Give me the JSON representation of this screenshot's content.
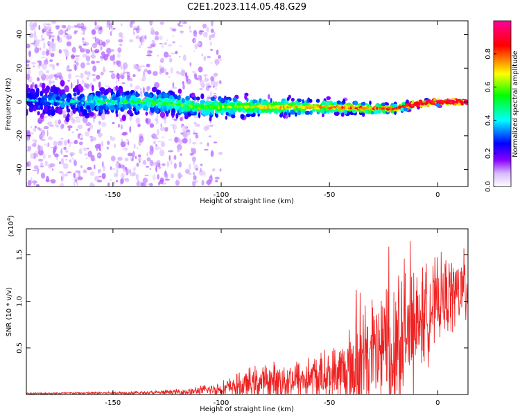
{
  "title": "C2E1.2023.114.05.48.G29",
  "chart_data": [
    {
      "type": "heatmap",
      "xlabel": "Height of straight line (km)",
      "ylabel": "Frequency (Hz)",
      "xlim": [
        -190,
        14
      ],
      "ylim": [
        -50,
        48
      ],
      "xticks": [
        -150,
        -100,
        -50,
        0
      ],
      "yticks": [
        -40,
        -20,
        0,
        20,
        40
      ],
      "colorbar": {
        "label": "Normalized spectral amplitude",
        "range": [
          0,
          1
        ],
        "ticks": [
          "0.0",
          "0.2",
          "0.4",
          "0.6",
          "0.8"
        ],
        "colormap": [
          "#ffffff",
          "#8800ff",
          "#0000ff",
          "#00ffff",
          "#00ff00",
          "#ffff00",
          "#ff0000",
          "#ff00aa"
        ]
      },
      "ridge": [
        {
          "x": -190,
          "y": 1
        },
        {
          "x": -170,
          "y": 0
        },
        {
          "x": -150,
          "y": 0
        },
        {
          "x": -130,
          "y": 0
        },
        {
          "x": -110,
          "y": -3
        },
        {
          "x": -90,
          "y": -3
        },
        {
          "x": -70,
          "y": -3
        },
        {
          "x": -50,
          "y": -3
        },
        {
          "x": -30,
          "y": -4
        },
        {
          "x": -20,
          "y": -4
        },
        {
          "x": -10,
          "y": -1
        },
        {
          "x": 0,
          "y": 0
        },
        {
          "x": 14,
          "y": 0
        }
      ]
    },
    {
      "type": "line",
      "xlabel": "Height of straight line (km)",
      "ylabel": "SNR (10 * v/v)",
      "yscale_label": "(x10",
      "yscale_exp": "4",
      "yscale_close": ")",
      "xlim": [
        -190,
        14
      ],
      "ylim": [
        0,
        1.78
      ],
      "xticks": [
        -150,
        -100,
        -50,
        0
      ],
      "yticks": [
        0.5,
        1.0,
        1.5
      ],
      "color": "#ee2222",
      "envelope": [
        {
          "x": -190,
          "mean": 0.01,
          "spread": 0.01
        },
        {
          "x": -130,
          "mean": 0.02,
          "spread": 0.02
        },
        {
          "x": -115,
          "mean": 0.03,
          "spread": 0.04
        },
        {
          "x": -100,
          "mean": 0.06,
          "spread": 0.08
        },
        {
          "x": -85,
          "mean": 0.12,
          "spread": 0.18
        },
        {
          "x": -70,
          "mean": 0.15,
          "spread": 0.22
        },
        {
          "x": -50,
          "mean": 0.2,
          "spread": 0.28
        },
        {
          "x": -35,
          "mean": 0.3,
          "spread": 0.55
        },
        {
          "x": -20,
          "mean": 0.55,
          "spread": 0.9
        },
        {
          "x": -10,
          "mean": 0.75,
          "spread": 0.6
        },
        {
          "x": 0,
          "mean": 1.0,
          "spread": 0.45
        },
        {
          "x": 14,
          "mean": 1.15,
          "spread": 0.4
        }
      ]
    }
  ]
}
